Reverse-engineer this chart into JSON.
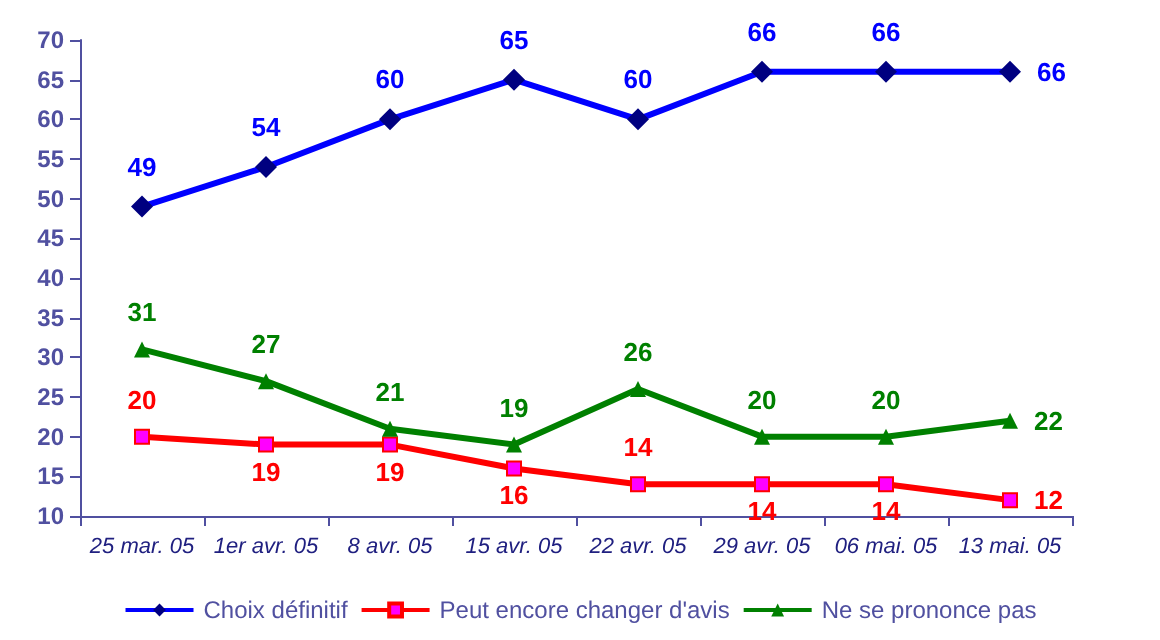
{
  "chart_data": {
    "type": "line",
    "categories": [
      "25 mar. 05",
      "1er avr. 05",
      "8 avr. 05",
      "15 avr. 05",
      "22 avr. 05",
      "29 avr. 05",
      "06 mai. 05",
      "13 mai. 05"
    ],
    "series": [
      {
        "name": "Choix définitif",
        "color": "#0000ff",
        "marker": "diamond",
        "values": [
          49,
          54,
          60,
          65,
          60,
          66,
          66,
          66
        ]
      },
      {
        "name": "Peut encore changer d'avis",
        "color": "#ff0000",
        "marker": "square",
        "values": [
          20,
          19,
          19,
          16,
          14,
          14,
          14,
          12
        ]
      },
      {
        "name": "Ne se prononce pas",
        "color": "#008000",
        "marker": "triangle",
        "values": [
          31,
          27,
          21,
          19,
          26,
          20,
          20,
          22
        ]
      }
    ],
    "ylim": [
      10,
      70
    ],
    "yticks": [
      10,
      15,
      20,
      25,
      30,
      35,
      40,
      45,
      50,
      55,
      60,
      65,
      70
    ],
    "grid": false,
    "legend": "bottom",
    "data_labels": true
  }
}
